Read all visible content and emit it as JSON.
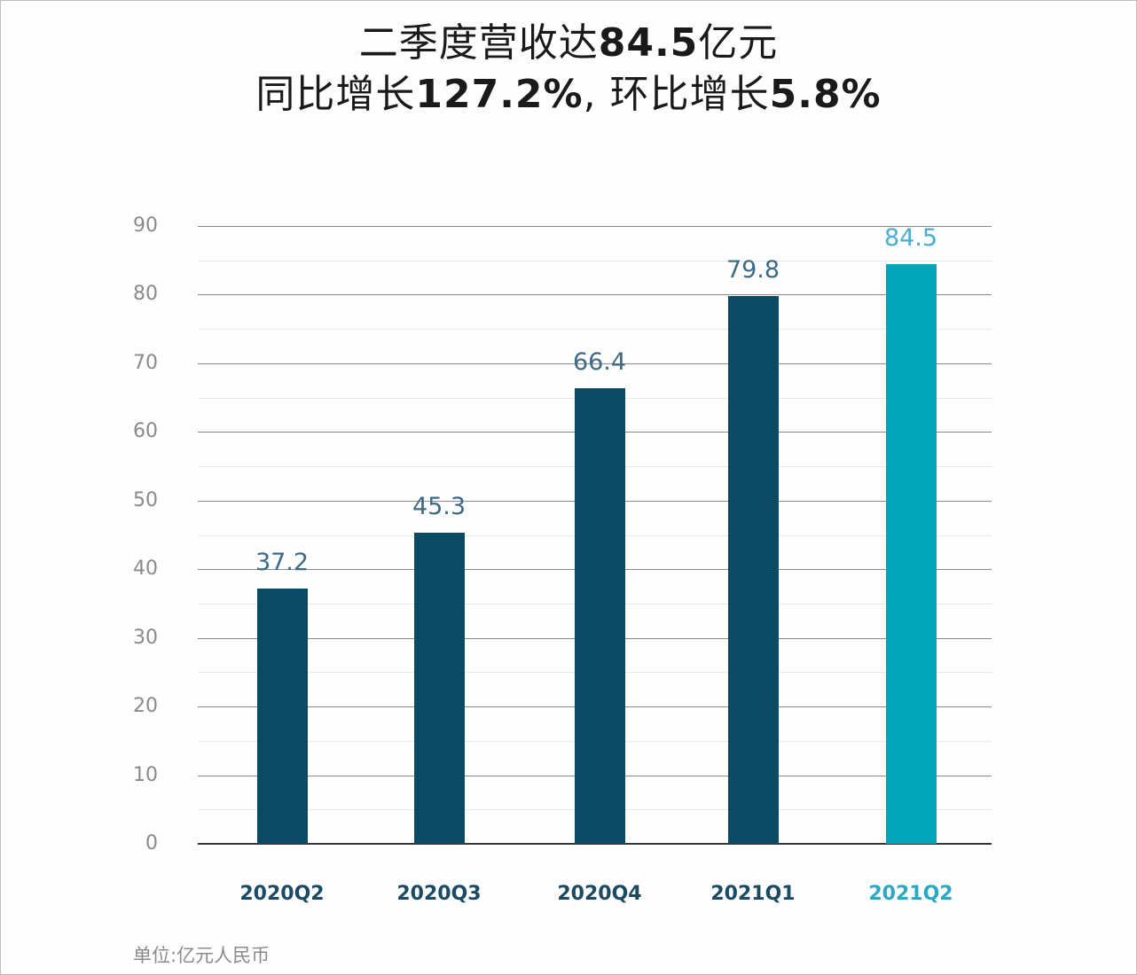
{
  "title": {
    "line1_prefix": "二季度营收达",
    "line1_bold": "84.5",
    "line1_suffix": "亿元",
    "line2_part1": "同比增长",
    "line2_bold1": "127.2%",
    "line2_part2": ", 环比增长",
    "line2_bold2": "5.8%"
  },
  "unit_note": "单位:亿元人民币",
  "colors": {
    "bar_default": "#0a4a63",
    "bar_highlight": "#00a6b8",
    "label_default": "#3d6a85",
    "label_highlight": "#4aaed0",
    "category_default": "#1c4a63",
    "category_highlight": "#2aa8c4"
  },
  "y_ticks": [
    "0",
    "10",
    "20",
    "30",
    "40",
    "50",
    "60",
    "70",
    "80",
    "90"
  ],
  "chart_data": {
    "type": "bar",
    "title": "二季度营收达84.5亿元 同比增长127.2%, 环比增长5.8%",
    "categories": [
      "2020Q2",
      "2020Q3",
      "2020Q4",
      "2021Q1",
      "2021Q2"
    ],
    "values": [
      37.2,
      45.3,
      66.4,
      79.8,
      84.5
    ],
    "value_labels": [
      "37.2",
      "45.3",
      "66.4",
      "79.8",
      "84.5"
    ],
    "highlight_index": 4,
    "xlabel": "",
    "ylabel": "单位:亿元人民币",
    "ylim": [
      0,
      90
    ],
    "ytick_step": 10,
    "grid": true,
    "legend": null
  }
}
